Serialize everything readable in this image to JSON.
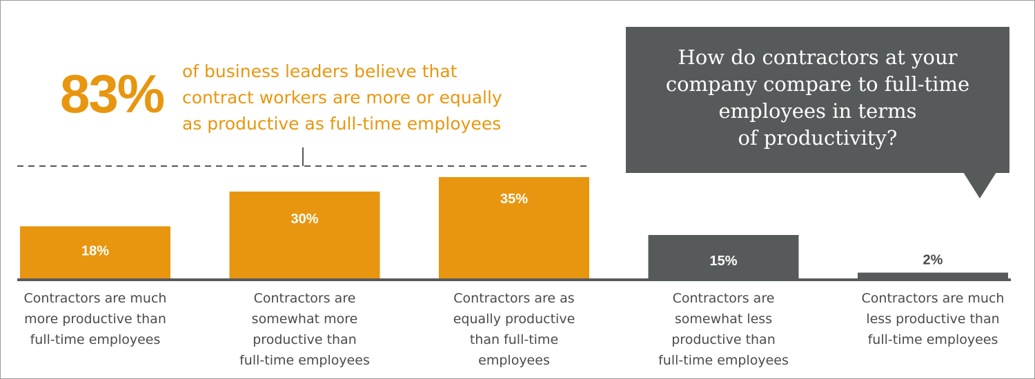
{
  "headline": {
    "percent": "83%",
    "lines": [
      "of business leaders believe that",
      "contract workers are more or equally",
      "as productive as full-time employees"
    ]
  },
  "callout": {
    "lines": [
      "How do contractors at your",
      "company compare to full-time",
      "employees in terms",
      "of productivity?"
    ]
  },
  "colors": {
    "accent": "#E8960F",
    "dark": "#575A5B",
    "label_text": "#4a4a4a",
    "dashed": "#555555"
  },
  "chart_data": {
    "type": "bar",
    "title": "How do contractors at your company compare to full-time employees in terms of productivity?",
    "ylim": [
      0,
      40
    ],
    "categories": [
      [
        "Contractors are much",
        "more productive than",
        "full-time employees"
      ],
      [
        "Contractors are",
        "somewhat more",
        "productive than",
        "full-time employees"
      ],
      [
        "Contractors are as",
        "equally productive",
        "than full-time",
        "employees"
      ],
      [
        "Contractors are",
        "somewhat less",
        "productive than",
        "full-time employees"
      ],
      [
        "Contractors are much",
        "less productive than",
        "full-time employees"
      ]
    ],
    "values": [
      18,
      30,
      35,
      15,
      2
    ],
    "value_labels": [
      "18%",
      "30%",
      "35%",
      "15%",
      "2%"
    ],
    "bar_colors": [
      "#E8960F",
      "#E8960F",
      "#E8960F",
      "#575A5B",
      "#575A5B"
    ],
    "annotation": "83% of business leaders believe that contract workers are more or equally as productive as full-time employees"
  }
}
